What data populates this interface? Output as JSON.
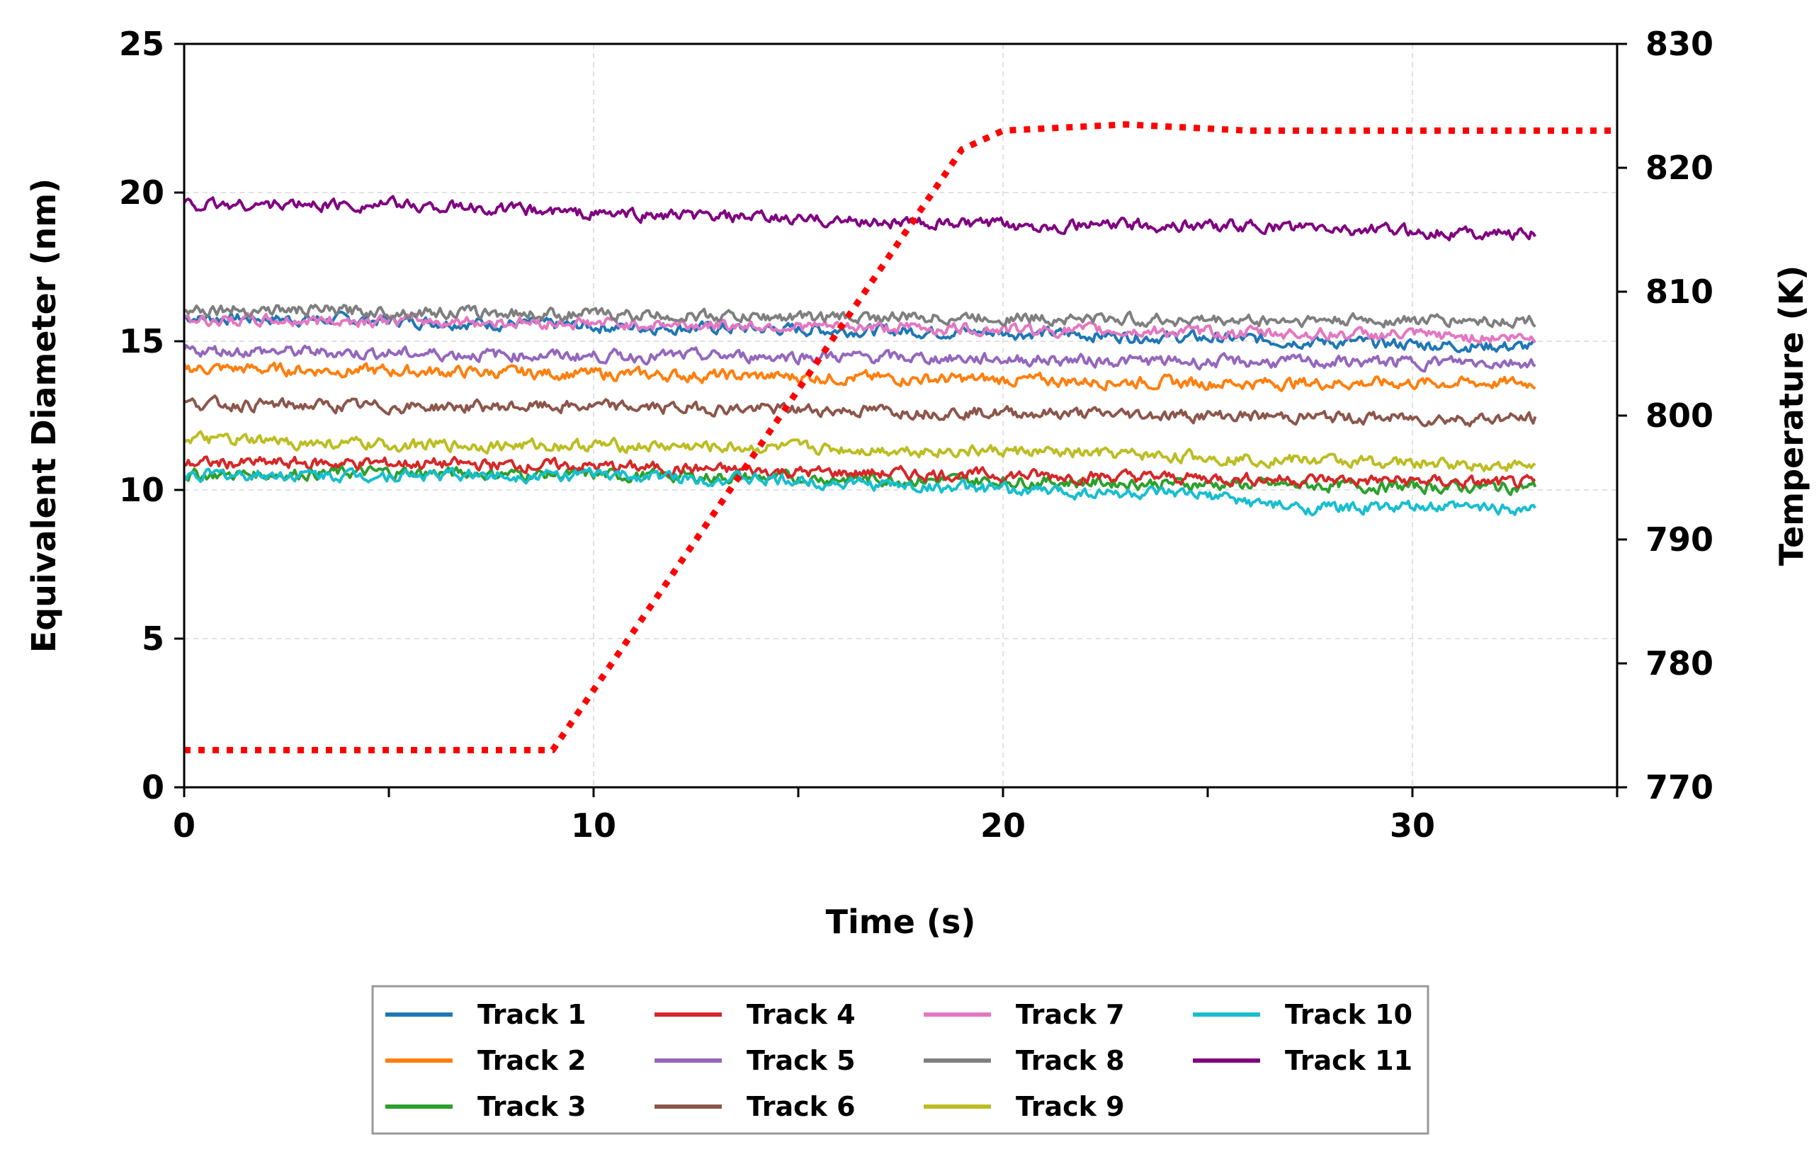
{
  "chart_data": {
    "type": "line",
    "xlabel": "Time (s)",
    "ylabel": "Equivalent Diameter (nm)",
    "y2label": "Temperature (K)",
    "xlim": [
      0,
      35
    ],
    "ylim": [
      0,
      25
    ],
    "y2lim": [
      770,
      830
    ],
    "xticks": [
      0,
      10,
      20,
      30
    ],
    "xminor": [
      5,
      15,
      25,
      35
    ],
    "yticks": [
      0,
      5,
      10,
      15,
      20,
      25
    ],
    "y2ticks": [
      770,
      780,
      790,
      800,
      810,
      820,
      830
    ],
    "grid": true,
    "legend_position": "bottom-center, below plot",
    "series": [
      {
        "name": "Track 1",
        "axis": "left",
        "color": "#1f77b4",
        "x": [
          0,
          5,
          10,
          15,
          20,
          25,
          30,
          33
        ],
        "values": [
          15.8,
          15.7,
          15.5,
          15.4,
          15.3,
          15.1,
          14.9,
          14.8
        ]
      },
      {
        "name": "Track 2",
        "axis": "left",
        "color": "#ff7f0e",
        "x": [
          0,
          5,
          10,
          15,
          20,
          25,
          30,
          33
        ],
        "values": [
          14.1,
          14.0,
          13.9,
          13.8,
          13.7,
          13.6,
          13.6,
          13.6
        ]
      },
      {
        "name": "Track 3",
        "axis": "left",
        "color": "#2ca02c",
        "x": [
          0,
          5,
          10,
          15,
          20,
          25,
          30,
          33
        ],
        "values": [
          10.5,
          10.6,
          10.5,
          10.4,
          10.3,
          10.2,
          10.1,
          10.1
        ]
      },
      {
        "name": "Track 4",
        "axis": "left",
        "color": "#d62728",
        "x": [
          0,
          5,
          10,
          15,
          20,
          25,
          30,
          33
        ],
        "values": [
          10.9,
          10.9,
          10.8,
          10.6,
          10.5,
          10.4,
          10.3,
          10.2
        ]
      },
      {
        "name": "Track 5",
        "axis": "left",
        "color": "#9467bd",
        "x": [
          0,
          5,
          10,
          15,
          20,
          25,
          30,
          33
        ],
        "values": [
          14.7,
          14.6,
          14.5,
          14.5,
          14.4,
          14.3,
          14.3,
          14.3
        ]
      },
      {
        "name": "Track 6",
        "axis": "left",
        "color": "#8c564b",
        "x": [
          0,
          5,
          10,
          15,
          20,
          25,
          30,
          33
        ],
        "values": [
          12.9,
          12.8,
          12.8,
          12.7,
          12.6,
          12.5,
          12.4,
          12.4
        ]
      },
      {
        "name": "Track 7",
        "axis": "left",
        "color": "#e377c2",
        "x": [
          0,
          5,
          10,
          15,
          20,
          25,
          30,
          33
        ],
        "values": [
          15.7,
          15.7,
          15.6,
          15.5,
          15.4,
          15.3,
          15.2,
          15.1
        ]
      },
      {
        "name": "Track 8",
        "axis": "left",
        "color": "#7f7f7f",
        "x": [
          0,
          5,
          10,
          15,
          20,
          25,
          30,
          33
        ],
        "values": [
          16.1,
          16.0,
          15.9,
          15.8,
          15.8,
          15.7,
          15.7,
          15.7
        ]
      },
      {
        "name": "Track 9",
        "axis": "left",
        "color": "#bcbd22",
        "x": [
          0,
          5,
          10,
          15,
          20,
          25,
          30,
          33
        ],
        "values": [
          11.7,
          11.5,
          11.5,
          11.4,
          11.3,
          11.1,
          10.9,
          10.8
        ]
      },
      {
        "name": "Track 10",
        "axis": "left",
        "color": "#17becf",
        "x": [
          0,
          5,
          10,
          15,
          20,
          25,
          27,
          30,
          33
        ],
        "values": [
          10.5,
          10.5,
          10.5,
          10.3,
          10.0,
          9.8,
          9.4,
          9.4,
          9.4
        ]
      },
      {
        "name": "Track 11",
        "axis": "left",
        "color": "#800080",
        "x": [
          0,
          5,
          10,
          15,
          20,
          25,
          30,
          33
        ],
        "values": [
          19.6,
          19.6,
          19.3,
          19.1,
          18.9,
          18.9,
          18.7,
          18.6
        ]
      },
      {
        "axis": "right",
        "color": "#ff0000",
        "style": "dotted",
        "x": [
          0,
          9,
          19,
          20,
          23,
          26,
          35
        ],
        "values": [
          773,
          773,
          821.5,
          823,
          823.5,
          823,
          823
        ]
      }
    ]
  },
  "legend": {
    "items": [
      "Track 1",
      "Track 2",
      "Track 3",
      "Track 4",
      "Track 5",
      "Track 6",
      "Track 7",
      "Track 8",
      "Track 9",
      "Track 10",
      "Track 11"
    ]
  }
}
